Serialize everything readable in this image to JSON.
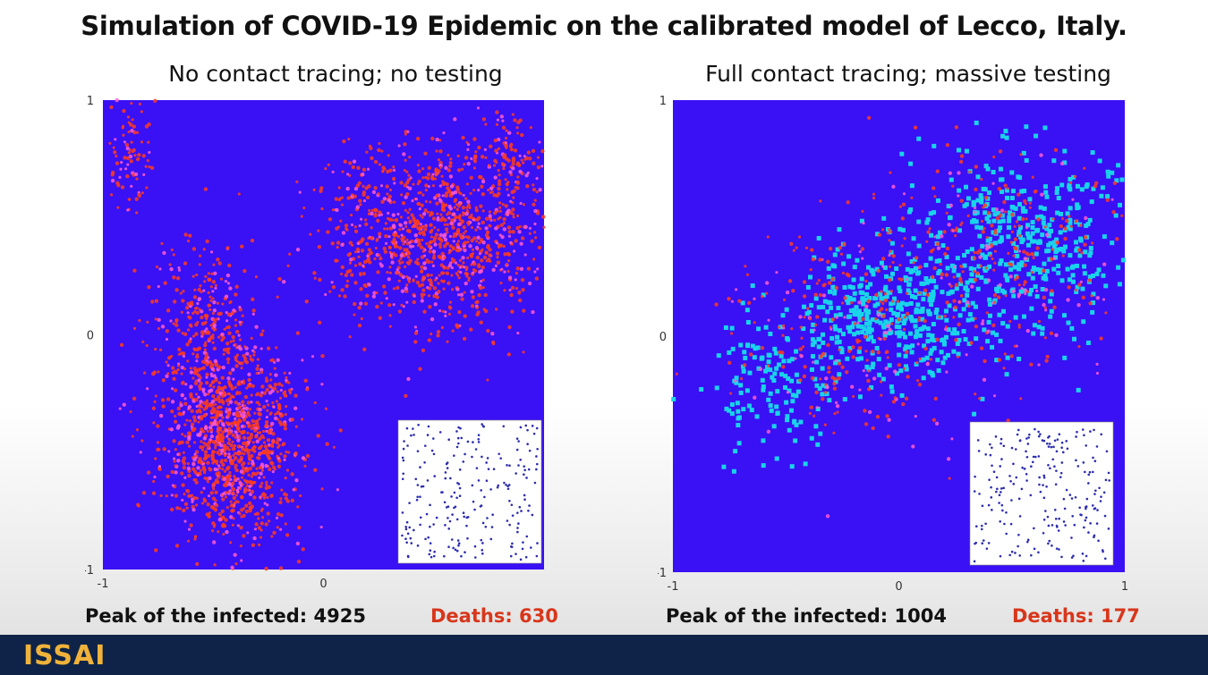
{
  "title": "Simulation of COVID-19 Epidemic on the calibrated model of Lecco, Italy.",
  "colors": {
    "background": "#3a10f5",
    "infected": "#ff3b1f",
    "recovered_traced": "#19d4ea",
    "susceptible_inset": "#2c2cb0",
    "deaths_text": "#d8361b",
    "footer": "#0e2347",
    "logo": "#f0b23a"
  },
  "chart_data": [
    {
      "type": "scatter",
      "title": "No contact tracing; no testing",
      "xlim": [
        -1,
        1
      ],
      "ylim": [
        -1,
        1
      ],
      "x_ticks": [
        "-1",
        "0"
      ],
      "y_ticks": [
        "1",
        "0",
        "-1"
      ],
      "grid": false,
      "clusters": [
        {
          "series": "infected",
          "center": [
            0.5,
            0.42
          ],
          "spread": [
            0.26,
            0.2
          ],
          "count": 1100
        },
        {
          "series": "infected",
          "center": [
            -0.42,
            -0.45
          ],
          "spread": [
            0.16,
            0.22
          ],
          "count": 1150
        },
        {
          "series": "infected",
          "center": [
            -0.55,
            0.05
          ],
          "spread": [
            0.12,
            0.18
          ],
          "count": 300
        },
        {
          "series": "infected",
          "center": [
            -0.88,
            0.78
          ],
          "spread": [
            0.06,
            0.12
          ],
          "count": 90
        },
        {
          "series": "infected",
          "center": [
            0.85,
            0.78
          ],
          "spread": [
            0.08,
            0.08
          ],
          "count": 80
        }
      ],
      "inset": {
        "type": "scatter",
        "background": "#ffffff",
        "points": 220
      },
      "stats": {
        "peak_label": "Peak of the infected: 4925",
        "deaths_label": "Deaths: 630"
      }
    },
    {
      "type": "scatter",
      "title": "Full contact tracing; massive testing",
      "xlim": [
        -1,
        1
      ],
      "ylim": [
        -1,
        1
      ],
      "x_ticks": [
        "-1",
        "0",
        "1"
      ],
      "y_ticks": [
        "1",
        "0",
        "-1"
      ],
      "grid": false,
      "clusters": [
        {
          "series": "traced",
          "center": [
            0.55,
            0.42
          ],
          "spread": [
            0.24,
            0.2
          ],
          "count": 420
        },
        {
          "series": "traced",
          "center": [
            -0.05,
            0.1
          ],
          "spread": [
            0.2,
            0.15
          ],
          "count": 380
        },
        {
          "series": "traced",
          "center": [
            -0.55,
            -0.2
          ],
          "spread": [
            0.15,
            0.15
          ],
          "count": 130
        },
        {
          "series": "infected",
          "center": [
            0.45,
            0.35
          ],
          "spread": [
            0.28,
            0.22
          ],
          "count": 300
        },
        {
          "series": "infected",
          "center": [
            -0.2,
            0.0
          ],
          "spread": [
            0.28,
            0.22
          ],
          "count": 280
        }
      ],
      "inset": {
        "type": "scatter",
        "background": "#ffffff",
        "points": 220
      },
      "stats": {
        "peak_label": "Peak of the infected: 1004",
        "deaths_label": "Deaths: 177"
      }
    }
  ],
  "footer": {
    "logo": "ISSAI"
  }
}
